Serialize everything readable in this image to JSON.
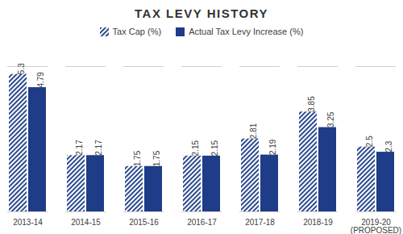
{
  "chart_data": {
    "type": "bar",
    "title": "TAX LEVY HISTORY",
    "categories": [
      "2013-14",
      "2014-15",
      "2015-16",
      "2016-17",
      "2017-18",
      "2018-19",
      "2019-20 (PROPOSED)"
    ],
    "series": [
      {
        "name": "Tax Cap (%)",
        "color": "#2b4a8e",
        "values": [
          5.3,
          2.17,
          1.75,
          2.15,
          2.81,
          3.85,
          2.5
        ]
      },
      {
        "name": "Actual Tax Levy Increase (%)",
        "color": "#1f3c88",
        "values": [
          4.79,
          2.17,
          1.75,
          2.15,
          2.19,
          3.25,
          2.3
        ]
      }
    ],
    "ylim": [
      0,
      5.6
    ],
    "grid": false,
    "legend": "top",
    "data_labels": true,
    "tick_labels": "x"
  }
}
